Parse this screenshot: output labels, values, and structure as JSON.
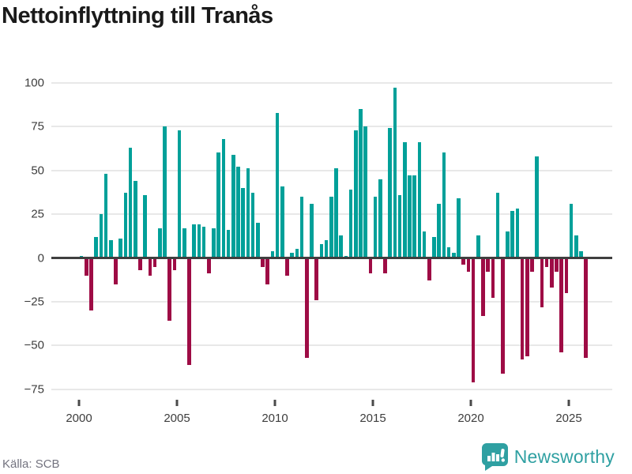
{
  "title": "Nettoinflyttning till Tranås",
  "source": "Källa: SCB",
  "branding": {
    "name": "Newsworthy",
    "color": "#2fa0a2",
    "icon": "newsworthy-speech-bubble-barchart-icon"
  },
  "chart_data": {
    "type": "bar",
    "frequency": "quarterly",
    "x_start": {
      "year": 2000,
      "quarter": 1
    },
    "values": [
      1,
      -10,
      -30,
      12,
      25,
      48,
      10,
      -15,
      11,
      37,
      63,
      44,
      -7,
      36,
      -10,
      -5,
      17,
      75,
      -36,
      -7,
      73,
      17,
      -61,
      19,
      19,
      18,
      -9,
      17,
      60,
      68,
      16,
      59,
      52,
      40,
      51,
      37,
      20,
      -5,
      -15,
      4,
      83,
      41,
      -10,
      3,
      5,
      35,
      -57,
      31,
      -24,
      8,
      10,
      35,
      51,
      13,
      1,
      39,
      73,
      85,
      75,
      -9,
      35,
      45,
      -9,
      74,
      97,
      36,
      66,
      47,
      47,
      66,
      15,
      -13,
      12,
      31,
      60,
      6,
      3,
      34,
      -4,
      -8,
      -71,
      13,
      -33,
      -8,
      -23,
      37,
      -66,
      15,
      27,
      28,
      -58,
      -56,
      -8,
      58,
      -28,
      -5,
      -17,
      -8,
      -54,
      -20,
      31,
      13,
      4,
      -57
    ],
    "x_tick_years": [
      2000,
      2005,
      2010,
      2015,
      2020,
      2025
    ],
    "x_tick_labels": [
      "2000",
      "2005",
      "2010",
      "2015",
      "2020",
      "2025"
    ],
    "y_ticks": [
      100,
      75,
      50,
      25,
      0,
      -25,
      -50,
      -75
    ],
    "y_tick_labels": [
      "100",
      "75",
      "50",
      "25",
      "0",
      "−25",
      "−50",
      "−75"
    ],
    "ylim": [
      -75,
      100
    ],
    "grid": "horizontal",
    "legend": "none",
    "positive_color": "#00a099",
    "negative_color": "#9e0c45"
  }
}
